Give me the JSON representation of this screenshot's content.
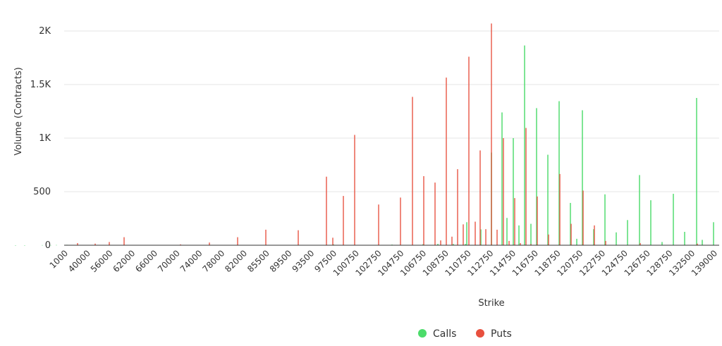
{
  "chart_data": {
    "type": "bar",
    "xlabel": "Strike",
    "ylabel": "Volume (Contracts)",
    "ylim": [
      0,
      2000
    ],
    "y_ticks": [
      0,
      500,
      1000,
      1500,
      2000
    ],
    "y_tick_labels": [
      "0",
      "500",
      "1K",
      "1.5K",
      "2K"
    ],
    "x_tick_labels": [
      "1000",
      "40000",
      "56000",
      "62000",
      "66000",
      "70000",
      "74000",
      "78000",
      "82000",
      "85500",
      "89500",
      "93500",
      "97500",
      "100750",
      "102750",
      "104750",
      "106750",
      "108750",
      "110750",
      "112750",
      "114750",
      "116750",
      "118750",
      "120750",
      "122750",
      "124750",
      "126750",
      "128750",
      "132500",
      "139000"
    ],
    "grid": "horizontal",
    "legend": "bottom-center",
    "colors": {
      "Calls": "#4cdc6a",
      "Puts": "#e8503e"
    },
    "series": [
      {
        "name": "Calls",
        "values": [
          [
            22,
            0
          ],
          [
            35,
            0
          ],
          [
            60,
            1
          ],
          [
            72,
            1
          ],
          [
            80,
            2
          ],
          [
            95,
            4
          ],
          [
            115,
            3
          ],
          [
            230,
            2
          ],
          [
            380,
            1
          ],
          [
            443,
            2
          ],
          [
            473,
            8
          ],
          [
            519,
            1
          ],
          [
            556,
            6
          ],
          [
            576,
            3
          ],
          [
            600,
            10
          ],
          [
            621,
            13
          ],
          [
            643,
            12
          ],
          [
            660,
            12
          ],
          [
            662,
            215
          ],
          [
            682,
            148
          ],
          [
            697,
            865
          ],
          [
            712,
            1240
          ],
          [
            719,
            255
          ],
          [
            728,
            1000
          ],
          [
            736,
            185
          ],
          [
            744,
            1865
          ],
          [
            753,
            200
          ],
          [
            761,
            1280
          ],
          [
            777,
            845
          ],
          [
            793,
            1345
          ],
          [
            809,
            395
          ],
          [
            818,
            60
          ],
          [
            826,
            1260
          ],
          [
            842,
            150
          ],
          [
            858,
            475
          ],
          [
            874,
            120
          ],
          [
            890,
            235
          ],
          [
            907,
            655
          ],
          [
            923,
            420
          ],
          [
            939,
            30
          ],
          [
            955,
            480
          ],
          [
            971,
            125
          ],
          [
            988,
            1375
          ],
          [
            996,
            50
          ],
          [
            1012,
            215
          ]
        ]
      },
      {
        "name": "Puts",
        "values": [
          [
            110,
            20
          ],
          [
            135,
            15
          ],
          [
            155,
            30
          ],
          [
            176,
            75
          ],
          [
            256,
            8
          ],
          [
            297,
            25
          ],
          [
            337,
            75
          ],
          [
            377,
            145
          ],
          [
            423,
            140
          ],
          [
            463,
            640
          ],
          [
            472,
            70
          ],
          [
            487,
            460
          ],
          [
            503,
            1030
          ],
          [
            537,
            380
          ],
          [
            568,
            445
          ],
          [
            585,
            1385
          ],
          [
            601,
            645
          ],
          [
            617,
            585
          ],
          [
            625,
            45
          ],
          [
            633,
            1565
          ],
          [
            641,
            80
          ],
          [
            649,
            710
          ],
          [
            657,
            195
          ],
          [
            665,
            1760
          ],
          [
            674,
            220
          ],
          [
            681,
            885
          ],
          [
            689,
            150
          ],
          [
            697,
            2070
          ],
          [
            705,
            145
          ],
          [
            714,
            1000
          ],
          [
            722,
            40
          ],
          [
            730,
            440
          ],
          [
            738,
            20
          ],
          [
            746,
            1095
          ],
          [
            753,
            10
          ],
          [
            762,
            455
          ],
          [
            778,
            100
          ],
          [
            794,
            665
          ],
          [
            810,
            200
          ],
          [
            827,
            510
          ],
          [
            843,
            185
          ],
          [
            859,
            40
          ],
          [
            908,
            20
          ],
          [
            989,
            15
          ]
        ]
      }
    ]
  },
  "legend": {
    "calls_label": "Calls",
    "puts_label": "Puts"
  }
}
